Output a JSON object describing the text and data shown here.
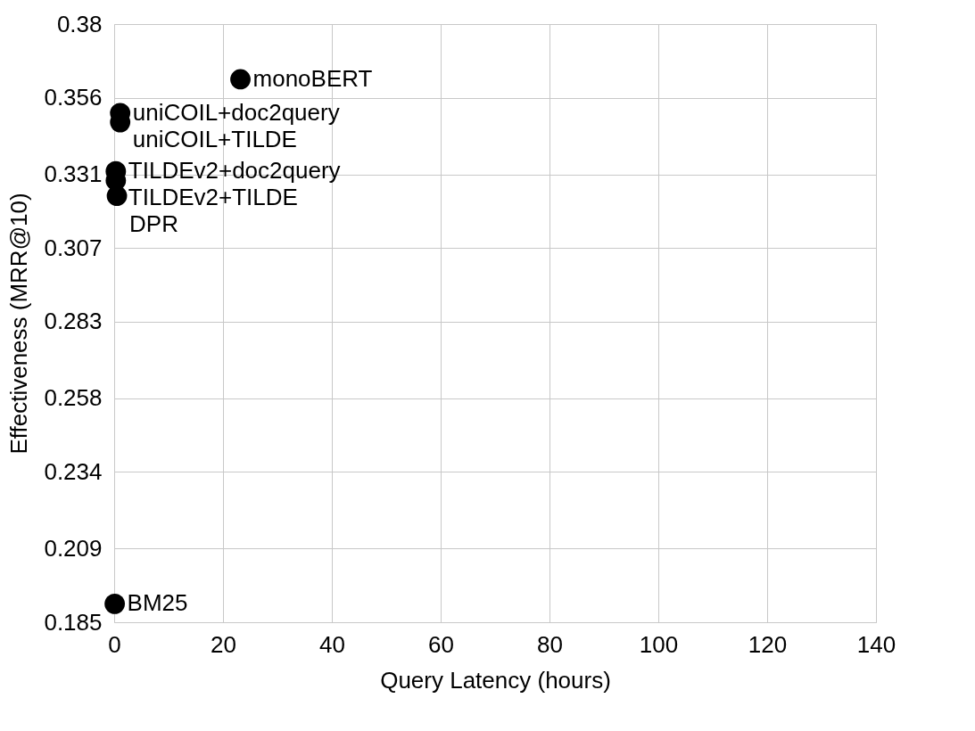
{
  "chart_data": {
    "type": "scatter",
    "xlabel": "Query Latency (hours)",
    "ylabel": "Effectiveness (MRR@10)",
    "xlim": [
      0,
      140
    ],
    "xticks": [
      0,
      20,
      40,
      60,
      80,
      100,
      120,
      140
    ],
    "ylim": [
      0.185,
      0.38
    ],
    "yticks": [
      0.185,
      0.209,
      0.234,
      0.258,
      0.283,
      0.307,
      0.331,
      0.356,
      0.38
    ],
    "grid": true,
    "legend": false,
    "marker": "circle",
    "series": [
      {
        "name": "monoBERT",
        "color": "#000000",
        "x": [
          23.2
        ],
        "values": [
          0.362
        ]
      },
      {
        "name": "uniCOIL+doc2query",
        "color": "#000000",
        "x": [
          1.1
        ],
        "values": [
          0.351
        ]
      },
      {
        "name": "uniCOIL+TILDE",
        "color": "#000000",
        "x": [
          1.1
        ],
        "values": [
          0.348
        ]
      },
      {
        "name": "TILDEv2+doc2query",
        "color": "#000000",
        "x": [
          0.3
        ],
        "values": [
          0.332
        ]
      },
      {
        "name": "TILDEv2+TILDE",
        "color": "#000000",
        "x": [
          0.3
        ],
        "values": [
          0.329
        ]
      },
      {
        "name": "DPR",
        "color": "#000000",
        "x": [
          0.5
        ],
        "values": [
          0.324
        ]
      },
      {
        "name": "BM25",
        "color": "#000000",
        "x": [
          0.1
        ],
        "values": [
          0.191
        ]
      }
    ]
  }
}
